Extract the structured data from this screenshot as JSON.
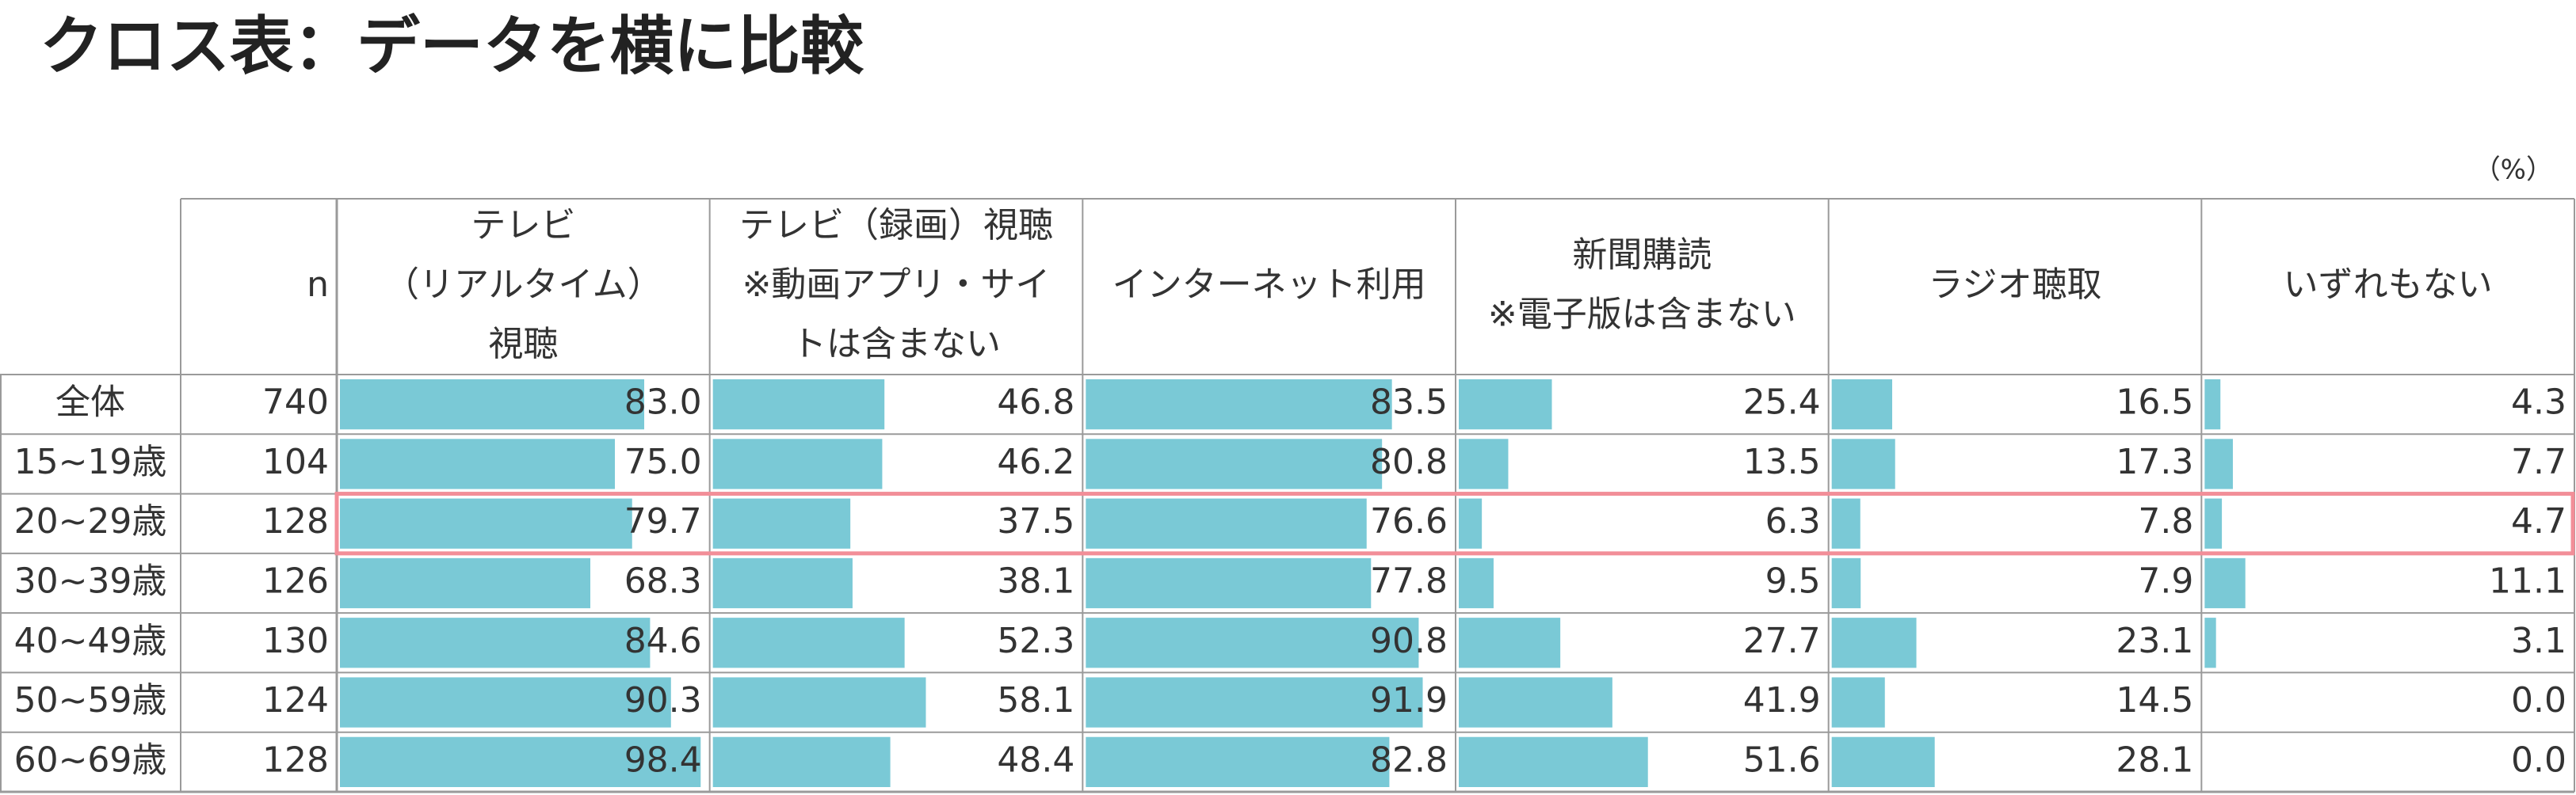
{
  "title": "クロス表：データを横に比較",
  "unit": "（%）",
  "table": {
    "n_header": "n",
    "columns": [
      [
        "テレビ",
        "（リアルタイム）",
        "視聴"
      ],
      [
        "テレビ（録画）視聴",
        "※動画アプリ・サイ",
        "トは含まない"
      ],
      [
        "インターネット利用"
      ],
      [
        "新聞購読",
        "※電子版は含まない"
      ],
      [
        "ラジオ聴取"
      ],
      [
        "いずれもない"
      ]
    ],
    "bar_color": "#7ac9d6",
    "highlight_color": "#f28e98",
    "rows": [
      {
        "label": "全体",
        "n": 740,
        "values": [
          83.0,
          46.8,
          83.5,
          25.4,
          16.5,
          4.3
        ],
        "value_labels": [
          "83.0",
          "46.8",
          "83.5",
          "25.4",
          "16.5",
          "4.3"
        ]
      },
      {
        "label": "15~19歳",
        "n": 104,
        "values": [
          75.0,
          46.2,
          80.8,
          13.5,
          17.3,
          7.7
        ],
        "value_labels": [
          "75.0",
          "46.2",
          "80.8",
          "13.5",
          "17.3",
          "7.7"
        ]
      },
      {
        "label": "20~29歳",
        "n": 128,
        "values": [
          79.7,
          37.5,
          76.6,
          6.3,
          7.8,
          4.7
        ],
        "value_labels": [
          "79.7",
          "37.5",
          "76.6",
          "6.3",
          "7.8",
          "4.7"
        ],
        "highlight": true
      },
      {
        "label": "30~39歳",
        "n": 126,
        "values": [
          68.3,
          38.1,
          77.8,
          9.5,
          7.9,
          11.1
        ],
        "value_labels": [
          "68.3",
          "38.1",
          "77.8",
          "9.5",
          "7.9",
          "11.1"
        ]
      },
      {
        "label": "40~49歳",
        "n": 130,
        "values": [
          84.6,
          52.3,
          90.8,
          27.7,
          23.1,
          3.1
        ],
        "value_labels": [
          "84.6",
          "52.3",
          "90.8",
          "27.7",
          "23.1",
          "3.1"
        ]
      },
      {
        "label": "50~59歳",
        "n": 124,
        "values": [
          90.3,
          58.1,
          91.9,
          41.9,
          14.5,
          0.0
        ],
        "value_labels": [
          "90.3",
          "58.1",
          "91.9",
          "41.9",
          "14.5",
          "0.0"
        ]
      },
      {
        "label": "60~69歳",
        "n": 128,
        "values": [
          98.4,
          48.4,
          82.8,
          51.6,
          28.1,
          0.0
        ],
        "value_labels": [
          "98.4",
          "48.4",
          "82.8",
          "51.6",
          "28.1",
          "0.0"
        ]
      }
    ]
  }
}
